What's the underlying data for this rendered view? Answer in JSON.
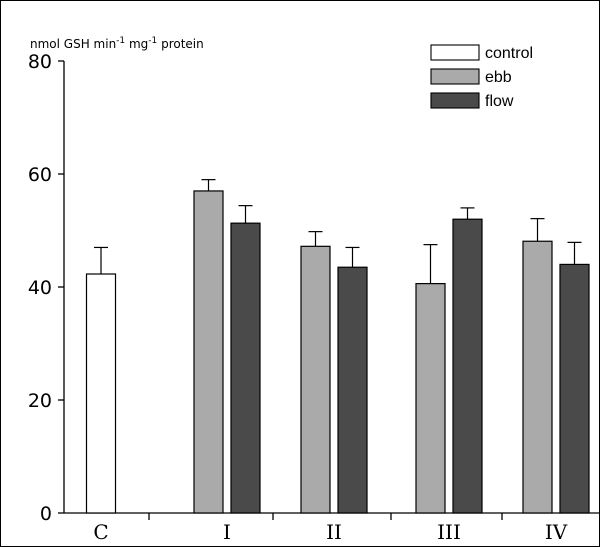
{
  "chart_data": {
    "type": "bar",
    "ylabel": {
      "parts": [
        {
          "text": "nmol GSH min",
          "sup": false
        },
        {
          "text": "-1",
          "sup": true
        },
        {
          "text": " mg",
          "sup": false
        },
        {
          "text": "-1",
          "sup": true
        },
        {
          "text": " protein",
          "sup": false
        }
      ]
    },
    "ylim": [
      0,
      80
    ],
    "yticks": [
      0,
      20,
      40,
      60,
      80
    ],
    "grid": false,
    "legend_position": "top-right",
    "categories": [
      "C",
      "I",
      "II",
      "III",
      "IV"
    ],
    "series": [
      {
        "name": "control",
        "color": "#ffffff",
        "values": [
          42.3,
          null,
          null,
          null,
          null
        ],
        "errors": [
          4.7,
          null,
          null,
          null,
          null
        ]
      },
      {
        "name": "ebb",
        "color": "#aaaaaa",
        "values": [
          null,
          57.0,
          47.2,
          40.6,
          48.1
        ],
        "errors": [
          null,
          2.0,
          2.6,
          6.9,
          4.0
        ]
      },
      {
        "name": "flow",
        "color": "#4a4a4a",
        "values": [
          null,
          51.3,
          43.5,
          52.0,
          44.0
        ],
        "errors": [
          null,
          3.1,
          3.5,
          2.0,
          3.9
        ]
      }
    ]
  }
}
